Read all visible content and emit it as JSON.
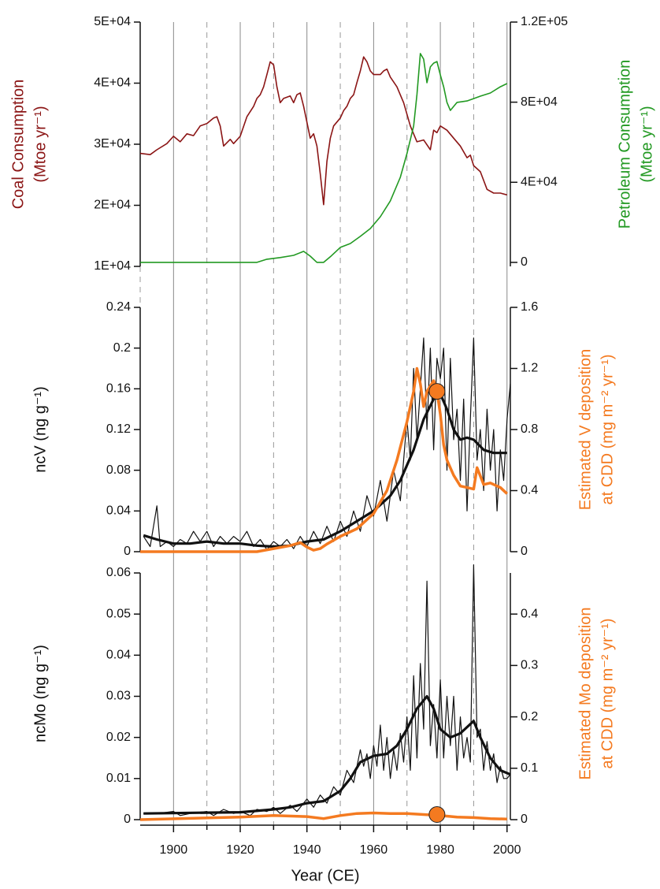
{
  "chart_data": [
    {
      "type": "line",
      "xlim": [
        1890,
        2001
      ],
      "ylabel": [
        "Coal Consumption",
        "(Mtoe yr⁻¹)"
      ],
      "ylabel_color": "#8b1515",
      "y2label": [
        "Petroleum Consumption",
        "(Mtoe yr⁻¹)"
      ],
      "y2label_color": "#229922",
      "ylim": [
        10000,
        50000
      ],
      "yticks": [
        {
          "value": 10000,
          "label": "1E+04"
        },
        {
          "value": 20000,
          "label": "2E+04"
        },
        {
          "value": 30000,
          "label": "3E+04"
        },
        {
          "value": 40000,
          "label": "4E+04"
        },
        {
          "value": 50000,
          "label": "5E+04"
        }
      ],
      "y2lim": [
        -2000,
        120000
      ],
      "y2ticks": [
        0,
        {
          "value": 40000,
          "label": "4E+04"
        },
        {
          "value": 80000,
          "label": "8E+04"
        },
        {
          "value": 120000,
          "label": "1.2E+05"
        }
      ],
      "series": [
        {
          "color": "#8b1515",
          "line_width": 1.6,
          "x": [
            1890,
            1893,
            1895,
            1898,
            1900,
            1902,
            1904,
            1906,
            1908,
            1910,
            1912,
            1913,
            1914,
            1915,
            1917,
            1918,
            1920,
            1922,
            1924,
            1925,
            1926,
            1927,
            1928,
            1929,
            1930,
            1931,
            1932,
            1933,
            1935,
            1936,
            1937,
            1938,
            1939,
            1940,
            1941,
            1942,
            1943,
            1944,
            1945,
            1946,
            1947,
            1948,
            1950,
            1951,
            1952,
            1953,
            1954,
            1955,
            1956,
            1957,
            1958,
            1959,
            1960,
            1962,
            1963,
            1964,
            1965,
            1967,
            1969,
            1971,
            1973,
            1975,
            1977,
            1978,
            1979,
            1980,
            1982,
            1984,
            1986,
            1988,
            1989,
            1990,
            1992,
            1994,
            1996,
            1998,
            2000
          ],
          "values": [
            28500,
            28300,
            29100,
            30100,
            31300,
            30400,
            31700,
            31400,
            33000,
            33400,
            34300,
            34500,
            33000,
            29700,
            30800,
            30100,
            31300,
            34500,
            36200,
            37500,
            38100,
            39400,
            41400,
            43500,
            43000,
            39400,
            36800,
            37500,
            37900,
            36800,
            38100,
            38400,
            36200,
            33600,
            31000,
            31700,
            29700,
            25200,
            20100,
            27200,
            31000,
            33000,
            34300,
            35500,
            36200,
            37500,
            38100,
            40100,
            42000,
            44300,
            43500,
            42000,
            41400,
            41400,
            42000,
            42300,
            41000,
            39400,
            36800,
            33000,
            30400,
            30700,
            29100,
            32300,
            31900,
            33000,
            32300,
            31000,
            29700,
            27800,
            28200,
            26500,
            25500,
            22600,
            22000,
            22000,
            21700
          ]
        },
        {
          "color": "#229922",
          "line_width": 1.6,
          "axis": "y2",
          "x": [
            1890,
            1925,
            1928,
            1932,
            1936,
            1939,
            1941,
            1943,
            1945,
            1947,
            1950,
            1953,
            1956,
            1959,
            1962,
            1965,
            1968,
            1970,
            1972,
            1973,
            1974,
            1975,
            1976,
            1977,
            1978,
            1979,
            1980,
            1981,
            1982,
            1983,
            1985,
            1988,
            1990,
            1992,
            1995,
            1998,
            2000
          ],
          "values": [
            0,
            0,
            1600,
            2400,
            3500,
            5500,
            3100,
            0,
            0,
            2800,
            7500,
            9400,
            13000,
            16900,
            22800,
            30700,
            42500,
            54300,
            68100,
            83800,
            104300,
            101500,
            89700,
            97600,
            99500,
            100300,
            93600,
            87700,
            79900,
            75900,
            79900,
            80600,
            81800,
            83000,
            84600,
            87700,
            89300
          ]
        }
      ]
    },
    {
      "type": "line",
      "xlim": [
        1890,
        2001
      ],
      "ylabel": [
        "ncV (ng g⁻¹)"
      ],
      "ylabel_color": "#111111",
      "y2label": [
        "Estimated V deposition",
        "at CDD (mg m⁻² yr⁻¹)"
      ],
      "y2label_color": "#f47a20",
      "ylim": [
        0,
        0.24
      ],
      "yticks": [
        0,
        0.04,
        0.08,
        0.12,
        0.16,
        0.2,
        0.24
      ],
      "y2lim": [
        0,
        1.6
      ],
      "y2ticks": [
        0,
        0.4,
        0.8,
        1.2,
        1.6
      ],
      "series": [
        {
          "color": "#111111",
          "line_width": 1.2,
          "x": [
            1891,
            1893,
            1895,
            1896,
            1898,
            1900,
            1902,
            1904,
            1906,
            1908,
            1910,
            1912,
            1914,
            1916,
            1918,
            1920,
            1922,
            1924,
            1926,
            1928,
            1930,
            1932,
            1934,
            1936,
            1938,
            1940,
            1942,
            1944,
            1946,
            1948,
            1950,
            1952,
            1954,
            1956,
            1958,
            1960,
            1962,
            1964,
            1966,
            1968,
            1970,
            1971,
            1972,
            1973,
            1974,
            1975,
            1976,
            1977,
            1978,
            1979,
            1980,
            1981,
            1982,
            1983,
            1984,
            1985,
            1986,
            1987,
            1988,
            1989,
            1990,
            1991,
            1992,
            1993,
            1994,
            1995,
            1996,
            1997,
            1998,
            1999,
            2000,
            2001
          ],
          "values": [
            0.015,
            0.005,
            0.045,
            0.005,
            0.01,
            0.005,
            0.012,
            0.008,
            0.02,
            0.01,
            0.02,
            0.005,
            0.015,
            0.008,
            0.015,
            0.01,
            0.02,
            0.005,
            0.012,
            0.002,
            0.01,
            0.005,
            0.012,
            0.003,
            0.015,
            0.005,
            0.02,
            0.008,
            0.025,
            0.01,
            0.03,
            0.015,
            0.04,
            0.02,
            0.055,
            0.035,
            0.07,
            0.03,
            0.08,
            0.05,
            0.13,
            0.09,
            0.18,
            0.11,
            0.16,
            0.21,
            0.12,
            0.2,
            0.1,
            0.19,
            0.17,
            0.2,
            0.08,
            0.19,
            0.11,
            0.14,
            0.07,
            0.15,
            0.04,
            0.13,
            0.21,
            0.09,
            0.12,
            0.06,
            0.14,
            0.08,
            0.12,
            0.04,
            0.1,
            0.07,
            0.13,
            0.165
          ]
        },
        {
          "color": "#111111",
          "line_width": 3.2,
          "x": [
            1891,
            1895,
            1900,
            1905,
            1910,
            1915,
            1920,
            1925,
            1930,
            1935,
            1940,
            1945,
            1950,
            1955,
            1960,
            1965,
            1968,
            1972,
            1975,
            1978,
            1980,
            1982,
            1984,
            1986,
            1988,
            1990,
            1993,
            1996,
            2000
          ],
          "values": [
            0.016,
            0.012,
            0.008,
            0.008,
            0.01,
            0.008,
            0.008,
            0.006,
            0.005,
            0.006,
            0.01,
            0.012,
            0.02,
            0.03,
            0.04,
            0.055,
            0.07,
            0.1,
            0.13,
            0.15,
            0.155,
            0.14,
            0.12,
            0.11,
            0.112,
            0.11,
            0.1,
            0.097,
            0.097
          ]
        },
        {
          "color": "#f47a20",
          "line_width": 3.5,
          "axis": "y2",
          "x": [
            1890,
            1925,
            1930,
            1935,
            1938,
            1940,
            1942,
            1944,
            1946,
            1950,
            1955,
            1960,
            1964,
            1967,
            1970,
            1972,
            1973,
            1974,
            1975,
            1976,
            1978,
            1979,
            1980,
            1981,
            1982,
            1984,
            1986,
            1988,
            1990,
            1991,
            1993,
            1995,
            1998,
            2000
          ],
          "values": [
            0,
            0,
            0.02,
            0.04,
            0.06,
            0.03,
            0.01,
            0.02,
            0.05,
            0.1,
            0.15,
            0.25,
            0.4,
            0.6,
            0.85,
            1.05,
            1.2,
            1.1,
            0.95,
            1.05,
            1.12,
            1.05,
            0.9,
            0.7,
            0.6,
            0.5,
            0.43,
            0.42,
            0.41,
            0.55,
            0.44,
            0.45,
            0.42,
            0.38
          ]
        }
      ],
      "points": [
        {
          "x": 1979,
          "value": 1.05,
          "axis": "y2",
          "color": "#f47a20"
        }
      ]
    },
    {
      "type": "line",
      "xlim": [
        1890,
        2001
      ],
      "ylabel": [
        "ncMo (ng g⁻¹)"
      ],
      "ylabel_color": "#111111",
      "y2label": [
        "Estimated Mo deposition",
        "at CDD (mg m⁻² yr⁻¹)"
      ],
      "y2label_color": "#f47a20",
      "xlabel": "Year (CE)",
      "xticks": [
        1900,
        1920,
        1940,
        1960,
        1980,
        2000
      ],
      "xticks_minor": [
        1910,
        1930,
        1950,
        1970,
        1990
      ],
      "ylim": [
        0,
        0.06
      ],
      "yticks": [
        0,
        0.01,
        0.02,
        0.03,
        0.04,
        0.05,
        0.06
      ],
      "y2lim": [
        0,
        0.48
      ],
      "y2ticks": [
        0,
        0.1,
        0.2,
        0.3,
        0.4
      ],
      "series": [
        {
          "color": "#111111",
          "line_width": 1.2,
          "x": [
            1891,
            1895,
            1900,
            1902,
            1905,
            1910,
            1912,
            1915,
            1918,
            1920,
            1923,
            1925,
            1928,
            1930,
            1932,
            1935,
            1937,
            1940,
            1942,
            1944,
            1946,
            1948,
            1950,
            1952,
            1954,
            1956,
            1957,
            1958,
            1959,
            1960,
            1961,
            1962,
            1963,
            1964,
            1965,
            1966,
            1967,
            1968,
            1969,
            1970,
            1971,
            1972,
            1973,
            1974,
            1975,
            1976,
            1977,
            1978,
            1979,
            1980,
            1981,
            1982,
            1983,
            1984,
            1985,
            1986,
            1987,
            1988,
            1989,
            1990,
            1991,
            1992,
            1993,
            1994,
            1995,
            1996,
            1997,
            1998,
            1999,
            2000,
            2001
          ],
          "values": [
            0.0015,
            0.0015,
            0.002,
            0.001,
            0.0015,
            0.002,
            0.001,
            0.0025,
            0.0015,
            0.002,
            0.001,
            0.0025,
            0.002,
            0.003,
            0.0015,
            0.0035,
            0.002,
            0.005,
            0.003,
            0.006,
            0.004,
            0.008,
            0.006,
            0.012,
            0.009,
            0.017,
            0.013,
            0.016,
            0.01,
            0.018,
            0.013,
            0.023,
            0.012,
            0.02,
            0.01,
            0.017,
            0.012,
            0.021,
            0.014,
            0.025,
            0.012,
            0.035,
            0.015,
            0.038,
            0.022,
            0.058,
            0.018,
            0.028,
            0.015,
            0.034,
            0.015,
            0.03,
            0.018,
            0.03,
            0.012,
            0.025,
            0.015,
            0.02,
            0.014,
            0.062,
            0.02,
            0.022,
            0.012,
            0.019,
            0.012,
            0.016,
            0.009,
            0.013,
            0.01,
            0.01,
            0.011
          ]
        },
        {
          "color": "#111111",
          "line_width": 3.2,
          "x": [
            1891,
            1900,
            1910,
            1920,
            1930,
            1935,
            1940,
            1945,
            1950,
            1953,
            1956,
            1960,
            1964,
            1967,
            1970,
            1973,
            1976,
            1978,
            1980,
            1983,
            1986,
            1990,
            1992,
            1995,
            1998,
            2001
          ],
          "values": [
            0.0015,
            0.0016,
            0.0017,
            0.0018,
            0.0025,
            0.003,
            0.004,
            0.0045,
            0.007,
            0.01,
            0.014,
            0.0155,
            0.016,
            0.018,
            0.022,
            0.027,
            0.03,
            0.027,
            0.022,
            0.02,
            0.021,
            0.024,
            0.02,
            0.015,
            0.012,
            0.011
          ]
        },
        {
          "color": "#f47a20",
          "line_width": 3.5,
          "axis": "y2",
          "x": [
            1890,
            1920,
            1930,
            1940,
            1945,
            1950,
            1955,
            1960,
            1965,
            1970,
            1975,
            1980,
            1985,
            1990,
            1995,
            2000
          ],
          "values": [
            0,
            0.005,
            0.008,
            0.006,
            0.002,
            0.008,
            0.012,
            0.013,
            0.012,
            0.012,
            0.01,
            0.008,
            0.005,
            0.004,
            0.002,
            0.001
          ]
        }
      ],
      "points": [
        {
          "x": 1979,
          "value": 0.01,
          "axis": "y2",
          "color": "#f47a20"
        }
      ]
    }
  ]
}
